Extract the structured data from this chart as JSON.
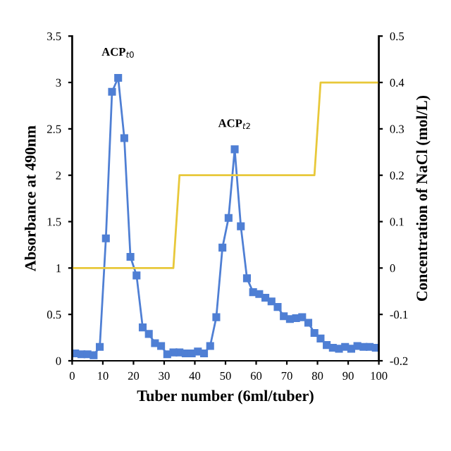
{
  "chart_data": {
    "type": "line",
    "xlabel": "Tuber number (6ml/tuber)",
    "ylabel": "Absorbance at 490nm",
    "y2label": "Concentration of NaCl (mol/L)",
    "series": [
      {
        "color": "#4f7fd4",
        "marker": "square",
        "x": [
          1,
          3,
          5,
          7,
          9,
          11,
          13,
          15,
          17,
          19,
          21,
          23,
          25,
          27,
          29,
          31,
          33,
          35,
          37,
          39,
          41,
          43,
          45,
          47,
          49,
          51,
          53,
          55,
          57,
          59,
          61,
          63,
          65,
          67,
          69,
          71,
          73,
          75,
          77,
          79,
          81,
          83,
          85,
          87,
          89,
          91,
          93,
          95,
          97,
          99
        ],
        "values": [
          0.08,
          0.07,
          0.07,
          0.06,
          0.15,
          1.32,
          2.9,
          3.05,
          2.4,
          1.12,
          0.92,
          0.36,
          0.29,
          0.19,
          0.16,
          0.07,
          0.09,
          0.09,
          0.08,
          0.08,
          0.1,
          0.08,
          0.16,
          0.47,
          1.22,
          1.54,
          2.28,
          1.45,
          0.89,
          0.74,
          0.72,
          0.68,
          0.64,
          0.58,
          0.48,
          0.45,
          0.46,
          0.47,
          0.41,
          0.3,
          0.24,
          0.17,
          0.14,
          0.13,
          0.15,
          0.13,
          0.16,
          0.15,
          0.15,
          0.14
        ]
      },
      {
        "color": "#e8c83a",
        "marker": "none",
        "axis": "y2",
        "x": [
          0,
          33,
          35,
          79,
          81,
          100
        ],
        "values": [
          0,
          0,
          0.2,
          0.2,
          0.4,
          0.4
        ]
      }
    ],
    "xlim": [
      0,
      100
    ],
    "xticks": [
      0,
      10,
      20,
      30,
      40,
      50,
      60,
      70,
      80,
      90,
      100
    ],
    "ylim": [
      0,
      3.5
    ],
    "yticks": [
      0,
      0.5,
      1,
      1.5,
      2,
      2.5,
      3,
      3.5
    ],
    "y2lim": [
      -0.2,
      0.5
    ],
    "y2ticks": [
      -0.2,
      -0.1,
      0,
      0.1,
      0.2,
      0.3,
      0.4,
      0.5
    ],
    "annotations": [
      {
        "text": "ACP$_{t0}$",
        "x": 15,
        "y": 3.05
      },
      {
        "text": "ACP$_{t2}$",
        "x": 53,
        "y": 2.28
      }
    ],
    "grid": false,
    "legend": false
  }
}
